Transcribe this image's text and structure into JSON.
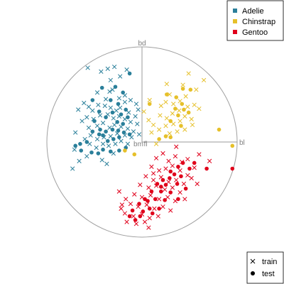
{
  "chart_data": {
    "type": "scatter",
    "title": "",
    "axes": [
      {
        "label": "bd",
        "x": 0,
        "y": 1
      },
      {
        "label": "bl",
        "x": 1,
        "y": 0
      },
      {
        "label": "bm",
        "x": 0,
        "y": 0
      },
      {
        "label": "fl",
        "x": 0,
        "y": 0
      }
    ],
    "xlim": [
      -1,
      1
    ],
    "ylim": [
      -1,
      1
    ],
    "grid": false,
    "circle": true,
    "legend_species": {
      "placement": "top-right",
      "entries": [
        {
          "name": "Adelie",
          "color": "#2a7f9a"
        },
        {
          "name": "Chinstrap",
          "color": "#e6c02a"
        },
        {
          "name": "Gentoo",
          "color": "#e0001b"
        }
      ]
    },
    "legend_type": {
      "placement": "bottom-right",
      "entries": [
        {
          "name": "train",
          "shape": "cross"
        },
        {
          "name": "test",
          "shape": "dot"
        }
      ]
    },
    "series": [
      {
        "name": "Adelie",
        "color": "#2a7f9a",
        "train": [
          [
            -0.57,
            0.78
          ],
          [
            -0.29,
            0.79
          ],
          [
            -0.36,
            0.77
          ],
          [
            -0.43,
            0.74
          ],
          [
            -0.33,
            0.65
          ],
          [
            -0.23,
            0.69
          ],
          [
            -0.16,
            0.76
          ],
          [
            -0.31,
            0.55
          ],
          [
            -0.34,
            0.53
          ],
          [
            -0.18,
            0.49
          ],
          [
            -0.24,
            0.46
          ],
          [
            -0.47,
            0.52
          ],
          [
            -0.61,
            0.41
          ],
          [
            -0.56,
            0.37
          ],
          [
            -0.52,
            0.33
          ],
          [
            -0.46,
            0.39
          ],
          [
            -0.39,
            0.38
          ],
          [
            -0.33,
            0.36
          ],
          [
            -0.27,
            0.33
          ],
          [
            -0.23,
            0.36
          ],
          [
            -0.18,
            0.42
          ],
          [
            -0.12,
            0.44
          ],
          [
            -0.06,
            0.4
          ],
          [
            -0.04,
            0.34
          ],
          [
            -0.07,
            0.27
          ],
          [
            -0.12,
            0.21
          ],
          [
            -0.18,
            0.24
          ],
          [
            -0.24,
            0.27
          ],
          [
            -0.3,
            0.25
          ],
          [
            -0.36,
            0.29
          ],
          [
            -0.44,
            0.28
          ],
          [
            -0.51,
            0.24
          ],
          [
            -0.58,
            0.26
          ],
          [
            -0.63,
            0.22
          ],
          [
            -0.56,
            0.15
          ],
          [
            -0.47,
            0.17
          ],
          [
            -0.41,
            0.2
          ],
          [
            -0.34,
            0.15
          ],
          [
            -0.29,
            0.18
          ],
          [
            -0.22,
            0.16
          ],
          [
            -0.15,
            0.14
          ],
          [
            -0.09,
            0.11
          ],
          [
            -0.03,
            0.08
          ],
          [
            -0.11,
            0.05
          ],
          [
            -0.18,
            0.07
          ],
          [
            -0.26,
            0.09
          ],
          [
            -0.33,
            0.06
          ],
          [
            -0.4,
            0.05
          ],
          [
            -0.47,
            0.03
          ],
          [
            -0.54,
            0.07
          ],
          [
            -0.6,
            0.03
          ],
          [
            -0.55,
            -0.02
          ],
          [
            -0.48,
            -0.06
          ],
          [
            -0.41,
            -0.02
          ],
          [
            -0.35,
            -0.04
          ],
          [
            -0.28,
            -0.02
          ],
          [
            -0.22,
            0.01
          ],
          [
            -0.15,
            -0.02
          ],
          [
            -0.58,
            -0.15
          ],
          [
            -0.42,
            -0.19
          ],
          [
            -0.37,
            -0.23
          ],
          [
            -0.3,
            -0.12
          ],
          [
            -0.67,
            0.34
          ],
          [
            -0.7,
            0.1
          ],
          [
            -0.71,
            -0.08
          ],
          [
            -0.66,
            -0.2
          ],
          [
            -0.73,
            -0.28
          ],
          [
            -0.14,
            0.31
          ],
          [
            -0.05,
            0.19
          ],
          [
            -0.38,
            0.45
          ]
        ],
        "test": [
          [
            -0.13,
            0.72
          ],
          [
            -0.28,
            0.58
          ],
          [
            -0.42,
            0.57
          ],
          [
            -0.2,
            0.52
          ],
          [
            -0.52,
            0.44
          ],
          [
            -0.33,
            0.44
          ],
          [
            -0.25,
            0.4
          ],
          [
            -0.17,
            0.34
          ],
          [
            -0.45,
            0.32
          ],
          [
            -0.38,
            0.26
          ],
          [
            -0.31,
            0.31
          ],
          [
            -0.22,
            0.29
          ],
          [
            -0.15,
            0.26
          ],
          [
            -0.5,
            0.22
          ],
          [
            -0.26,
            0.21
          ],
          [
            -0.2,
            0.19
          ],
          [
            -0.44,
            0.13
          ],
          [
            -0.38,
            0.11
          ],
          [
            -0.31,
            0.13
          ],
          [
            -0.25,
            0.12
          ],
          [
            -0.19,
            0.1
          ],
          [
            -0.13,
            0.08
          ],
          [
            -0.52,
            0.11
          ],
          [
            -0.45,
            0.08
          ],
          [
            -0.36,
            0.01
          ],
          [
            -0.3,
            0.03
          ],
          [
            -0.24,
            0.05
          ],
          [
            -0.58,
            0.0
          ],
          [
            -0.65,
            -0.02
          ],
          [
            -0.53,
            -0.11
          ],
          [
            -0.46,
            -0.12
          ],
          [
            -0.41,
            -0.08
          ],
          [
            -0.33,
            -0.1
          ],
          [
            -0.64,
            -0.09
          ],
          [
            -0.17,
            -0.06
          ],
          [
            -0.24,
            -0.09
          ],
          [
            -0.7,
            -0.04
          ],
          [
            -0.41,
            0.07
          ]
        ]
      },
      {
        "name": "Chinstrap",
        "color": "#e6c02a",
        "train": [
          [
            0.49,
            0.72
          ],
          [
            0.65,
            0.65
          ],
          [
            0.57,
            0.55
          ],
          [
            0.46,
            0.48
          ],
          [
            0.4,
            0.43
          ],
          [
            0.33,
            0.4
          ],
          [
            0.25,
            0.42
          ],
          [
            0.2,
            0.38
          ],
          [
            0.48,
            0.37
          ],
          [
            0.55,
            0.39
          ],
          [
            0.6,
            0.35
          ],
          [
            0.39,
            0.33
          ],
          [
            0.32,
            0.3
          ],
          [
            0.26,
            0.25
          ],
          [
            0.19,
            0.28
          ],
          [
            0.45,
            0.27
          ],
          [
            0.52,
            0.24
          ],
          [
            0.4,
            0.22
          ],
          [
            0.33,
            0.19
          ],
          [
            0.25,
            0.17
          ],
          [
            0.18,
            0.13
          ],
          [
            0.12,
            0.18
          ],
          [
            0.07,
            0.23
          ],
          [
            0.1,
            0.1
          ],
          [
            0.29,
            0.09
          ],
          [
            0.37,
            0.11
          ],
          [
            0.45,
            0.13
          ],
          [
            0.53,
            0.18
          ],
          [
            0.08,
            0.44
          ],
          [
            0.29,
            0.5
          ],
          [
            0.15,
            -0.02
          ],
          [
            0.43,
            0.6
          ],
          [
            0.02,
            0.32
          ],
          [
            0.26,
            0.61
          ]
        ],
        "test": [
          [
            0.43,
            0.56
          ],
          [
            0.51,
            0.55
          ],
          [
            0.26,
            0.5
          ],
          [
            0.36,
            0.47
          ],
          [
            0.42,
            0.4
          ],
          [
            0.44,
            0.34
          ],
          [
            0.35,
            0.35
          ],
          [
            0.49,
            0.31
          ],
          [
            0.38,
            0.28
          ],
          [
            0.3,
            0.22
          ],
          [
            0.41,
            0.17
          ],
          [
            0.25,
            0.06
          ],
          [
            0.3,
            0.05
          ],
          [
            0.81,
            0.13
          ],
          [
            0.95,
            -0.04
          ],
          [
            0.08,
            0.4
          ],
          [
            -0.18,
            -0.09
          ],
          [
            -0.08,
            -0.13
          ],
          [
            0.18,
            0.03
          ]
        ]
      },
      {
        "name": "Gentoo",
        "color": "#e0001b",
        "train": [
          [
            0.15,
            -0.17
          ],
          [
            0.22,
            -0.12
          ],
          [
            0.28,
            -0.2
          ],
          [
            0.35,
            -0.15
          ],
          [
            0.42,
            -0.21
          ],
          [
            0.48,
            -0.18
          ],
          [
            0.55,
            -0.27
          ],
          [
            0.6,
            -0.13
          ],
          [
            0.1,
            -0.26
          ],
          [
            0.18,
            -0.3
          ],
          [
            0.25,
            -0.28
          ],
          [
            0.32,
            -0.25
          ],
          [
            0.4,
            -0.3
          ],
          [
            0.48,
            -0.35
          ],
          [
            0.04,
            -0.36
          ],
          [
            0.12,
            -0.4
          ],
          [
            0.2,
            -0.37
          ],
          [
            0.28,
            -0.42
          ],
          [
            0.36,
            -0.4
          ],
          [
            0.44,
            -0.44
          ],
          [
            0.52,
            -0.38
          ],
          [
            -0.02,
            -0.45
          ],
          [
            0.07,
            -0.48
          ],
          [
            0.15,
            -0.46
          ],
          [
            0.24,
            -0.5
          ],
          [
            0.32,
            -0.48
          ],
          [
            0.4,
            -0.53
          ],
          [
            -0.08,
            -0.55
          ],
          [
            0.0,
            -0.58
          ],
          [
            0.09,
            -0.56
          ],
          [
            0.18,
            -0.6
          ],
          [
            0.27,
            -0.58
          ],
          [
            0.35,
            -0.62
          ],
          [
            -0.12,
            -0.65
          ],
          [
            -0.04,
            -0.68
          ],
          [
            0.05,
            -0.66
          ],
          [
            0.13,
            -0.7
          ],
          [
            0.22,
            -0.68
          ],
          [
            0.3,
            -0.72
          ],
          [
            -0.18,
            -0.75
          ],
          [
            -0.09,
            -0.78
          ],
          [
            0.0,
            -0.76
          ],
          [
            0.08,
            -0.8
          ],
          [
            0.17,
            -0.78
          ],
          [
            -0.16,
            -0.84
          ],
          [
            -0.06,
            -0.86
          ],
          [
            0.03,
            -0.84
          ],
          [
            -0.22,
            -0.7
          ],
          [
            -0.17,
            -0.6
          ],
          [
            -0.24,
            -0.52
          ],
          [
            0.12,
            -0.33
          ],
          [
            0.58,
            -0.44
          ],
          [
            0.71,
            -0.2
          ],
          [
            0.36,
            -0.05
          ],
          [
            -0.21,
            -0.66
          ],
          [
            0.45,
            -0.6
          ],
          [
            0.07,
            -0.9
          ]
        ],
        "test": [
          [
            0.43,
            -0.22
          ],
          [
            0.38,
            -0.26
          ],
          [
            0.3,
            -0.31
          ],
          [
            0.5,
            -0.28
          ],
          [
            0.34,
            -0.34
          ],
          [
            0.22,
            -0.4
          ],
          [
            0.41,
            -0.36
          ],
          [
            0.29,
            -0.38
          ],
          [
            0.16,
            -0.44
          ],
          [
            0.25,
            -0.45
          ],
          [
            0.37,
            -0.44
          ],
          [
            0.1,
            -0.52
          ],
          [
            0.2,
            -0.52
          ],
          [
            0.3,
            -0.53
          ],
          [
            0.46,
            -0.49
          ],
          [
            0.03,
            -0.6
          ],
          [
            0.14,
            -0.6
          ],
          [
            0.24,
            -0.61
          ],
          [
            -0.03,
            -0.65
          ],
          [
            0.08,
            -0.7
          ],
          [
            0.18,
            -0.7
          ],
          [
            -0.1,
            -0.72
          ],
          [
            0.01,
            -0.73
          ],
          [
            0.11,
            -0.75
          ],
          [
            -0.07,
            -0.82
          ],
          [
            -0.13,
            -0.78
          ],
          [
            0.55,
            -0.22
          ],
          [
            0.68,
            -0.28
          ],
          [
            0.95,
            -0.28
          ],
          [
            0.38,
            -0.6
          ],
          [
            0.06,
            -0.62
          ],
          [
            -0.02,
            -0.78
          ],
          [
            0.2,
            -0.47
          ]
        ]
      }
    ]
  }
}
